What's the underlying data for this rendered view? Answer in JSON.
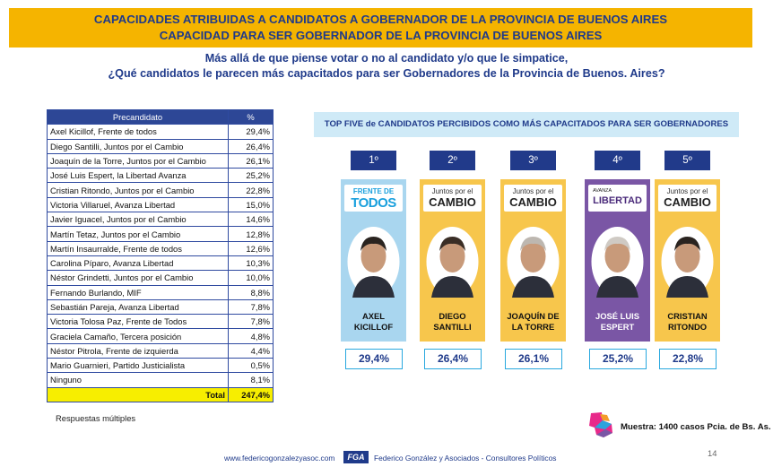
{
  "banner": {
    "line1": "CAPACIDADES ATRIBUIDAS A CANDIDATOS A GOBERNADOR DE LA PROVINCIA DE BUENOS AIRES",
    "line2": "CAPACIDAD PARA SER GOBERNADOR DE LA PROVINCIA DE BUENOS AIRES"
  },
  "question": {
    "line1": "Más allá de que piense votar o no al candidato y/o que le simpatice,",
    "line2": "¿Qué candidatos le parecen más capacitados para ser Gobernadores de la Provincia de Buenos. Aires?"
  },
  "table": {
    "header_candidate": "Precandidato",
    "header_pct": "%",
    "rows": [
      {
        "name": "Axel Kicillof, Frente de todos",
        "pct": "29,4%"
      },
      {
        "name": "Diego Santilli, Juntos por el Cambio",
        "pct": "26,4%"
      },
      {
        "name": "Joaquín de la Torre, Juntos por el Cambio",
        "pct": "26,1%"
      },
      {
        "name": "José Luis Espert, la Libertad Avanza",
        "pct": "25,2%"
      },
      {
        "name": "Cristian Ritondo, Juntos por el Cambio",
        "pct": "22,8%"
      },
      {
        "name": "Victoria Villaruel, Avanza Libertad",
        "pct": "15,0%"
      },
      {
        "name": "Javier Iguacel, Juntos por el Cambio",
        "pct": "14,6%"
      },
      {
        "name": "Martín Tetaz, Juntos por el Cambio",
        "pct": "12,8%"
      },
      {
        "name": "Martín Insaurralde, Frente de todos",
        "pct": "12,6%"
      },
      {
        "name": "Carolina Píparo, Avanza Libertad",
        "pct": "10,3%"
      },
      {
        "name": "Néstor Grindetti, Juntos por el Cambio",
        "pct": "10,0%"
      },
      {
        "name": "Fernando Burlando, MIF",
        "pct": "8,8%"
      },
      {
        "name": "Sebastián Pareja, Avanza Libertad",
        "pct": "7,8%"
      },
      {
        "name": "Victoria Tolosa Paz, Frente de Todos",
        "pct": "7,8%"
      },
      {
        "name": "Graciela Camaño, Tercera posición",
        "pct": "4,8%"
      },
      {
        "name": "Néstor Pitrola, Frente de izquierda",
        "pct": "4,4%"
      },
      {
        "name": "Mario Guarnieri, Partido Justicialista",
        "pct": "0,5%"
      },
      {
        "name": "Ninguno",
        "pct": "8,1%"
      }
    ],
    "total_label": "Total",
    "total_pct": "247,4%"
  },
  "note": "Respuestas múltiples",
  "topfive": {
    "title": "TOP FIVE de CANDIDATOS PERCIBIDOS COMO MÁS CAPACITADOS PARA SER GOBERNADORES",
    "cards": [
      {
        "rank": "1º",
        "logo_l1": "FRENTE DE",
        "logo_l2": "TODOS",
        "name_l1": "AXEL",
        "name_l2": "KICILLOF",
        "pct": "29,4%",
        "color": "#a9d6ef"
      },
      {
        "rank": "2º",
        "logo_l1": "Juntos por el",
        "logo_l2": "CAMBIO",
        "name_l1": "DIEGO",
        "name_l2": "SANTILLI",
        "pct": "26,4%",
        "color": "#f7c64c"
      },
      {
        "rank": "3º",
        "logo_l1": "Juntos por el",
        "logo_l2": "CAMBIO",
        "name_l1": "JOAQUÍN DE",
        "name_l2": "LA TORRE",
        "pct": "26,1%",
        "color": "#f7c64c"
      },
      {
        "rank": "4º",
        "logo_l1": "AVANZA",
        "logo_l2": "LIBERTAD",
        "name_l1": "JOSÉ LUIS",
        "name_l2": "ESPERT",
        "pct": "25,2%",
        "color": "#7a56a5"
      },
      {
        "rank": "5º",
        "logo_l1": "Juntos por el",
        "logo_l2": "CAMBIO",
        "name_l1": "CRISTIAN",
        "name_l2": "RITONDO",
        "pct": "22,8%",
        "color": "#f7c64c"
      }
    ]
  },
  "muestra": "Muestra: 1400 casos Pcia. de Bs. As.",
  "footer": {
    "url": "www.federicogonzalezyasoc.com",
    "badge": "FGA",
    "firm": "Federico González y Asociados - Consultores Políticos"
  },
  "page_number": "14"
}
